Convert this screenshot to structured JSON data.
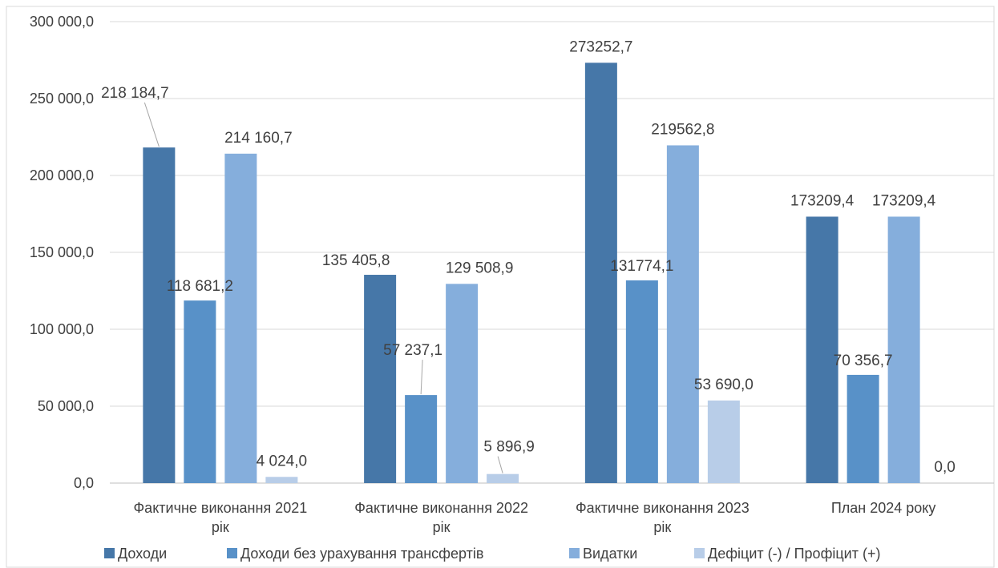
{
  "chart_data": {
    "type": "bar",
    "title": "",
    "xlabel": "",
    "ylabel": "",
    "ylim": [
      0,
      300000
    ],
    "yticks": [
      0,
      50000,
      100000,
      150000,
      200000,
      250000,
      300000
    ],
    "ytick_labels": [
      "0,0",
      "50 000,0",
      "100 000,0",
      "150 000,0",
      "200 000,0",
      "250 000,0",
      "300 000,0"
    ],
    "grid": true,
    "legend_position": "bottom",
    "categories": [
      [
        "Фактичне виконання 2021",
        "рік"
      ],
      [
        "Фактичне виконання 2022",
        "рік"
      ],
      [
        "Фактичне виконання 2023",
        "рік"
      ],
      [
        "План 2024 року"
      ]
    ],
    "series": [
      {
        "name": "Доходи",
        "color": "#4677a8",
        "values": [
          218184.7,
          135405.8,
          273252.7,
          173209.4
        ],
        "labels": [
          "218 184,7",
          "135 405,8",
          "273252,7",
          "173209,4"
        ]
      },
      {
        "name": "Доходи без урахування трансфертів",
        "color": "#5891c8",
        "values": [
          118681.2,
          57237.1,
          131774.1,
          70356.7
        ],
        "labels": [
          "118 681,2",
          "57 237,1",
          "131774,1",
          "70 356,7"
        ]
      },
      {
        "name": "Видатки",
        "color": "#85aedc",
        "values": [
          214160.7,
          129508.9,
          219562.8,
          173209.4
        ],
        "labels": [
          "214 160,7",
          "129 508,9",
          "219562,8",
          "173209,4"
        ]
      },
      {
        "name": "Дефіцит (-) / Профіцит (+)",
        "color": "#b8cde8",
        "values": [
          4024.0,
          5896.9,
          53690.0,
          0.0
        ],
        "labels": [
          "4 024,0",
          "5 896,9",
          "53 690,0",
          "0,0"
        ]
      }
    ]
  }
}
